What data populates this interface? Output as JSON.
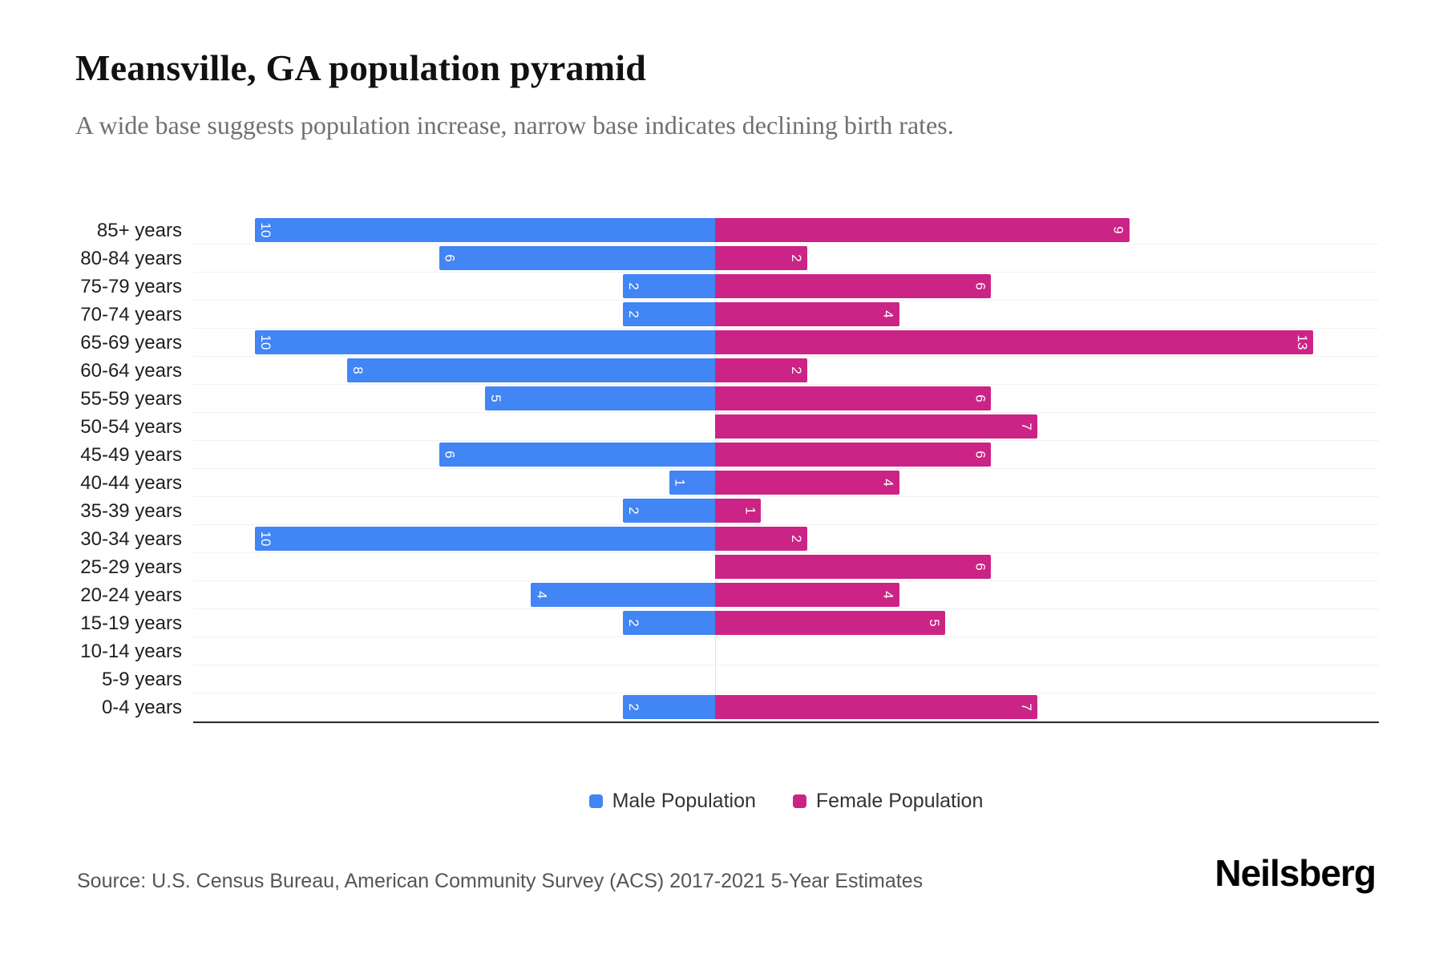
{
  "title": "Meansville, GA population pyramid",
  "subtitle": "A wide base suggests population increase, narrow base indicates declining birth rates.",
  "legend": {
    "male": "Male Population",
    "female": "Female Population"
  },
  "source": "Source: U.S. Census Bureau, American Community Survey (ACS) 2017-2021 5-Year Estimates",
  "brand": "Neilsberg",
  "colors": {
    "male": "#4285F4",
    "female": "#CB2486"
  },
  "chart_data": {
    "type": "bar",
    "variant": "population-pyramid",
    "orientation": "horizontal",
    "title": "Meansville, GA population pyramid",
    "categories": [
      "85+ years",
      "80-84 years",
      "75-79 years",
      "70-74 years",
      "65-69 years",
      "60-64 years",
      "55-59 years",
      "50-54 years",
      "45-49 years",
      "40-44 years",
      "35-39 years",
      "30-34 years",
      "25-29 years",
      "20-24 years",
      "15-19 years",
      "10-14 years",
      "5-9 years",
      "0-4 years"
    ],
    "series": [
      {
        "name": "Male Population",
        "side": "left",
        "color": "#4285F4",
        "values": [
          10,
          6,
          2,
          2,
          10,
          8,
          5,
          0,
          6,
          1,
          2,
          10,
          0,
          4,
          2,
          0,
          0,
          2
        ]
      },
      {
        "name": "Female Population",
        "side": "right",
        "color": "#CB2486",
        "values": [
          9,
          2,
          6,
          4,
          13,
          2,
          6,
          7,
          6,
          4,
          1,
          2,
          6,
          4,
          5,
          0,
          0,
          7
        ]
      }
    ],
    "value_labels": "inside-outer-end-rotated",
    "xlim_left_male": 10,
    "xlim_right_female": 13,
    "grid": "faint horizontal row lines + faint vertical center line",
    "legend_position": "bottom-center"
  }
}
